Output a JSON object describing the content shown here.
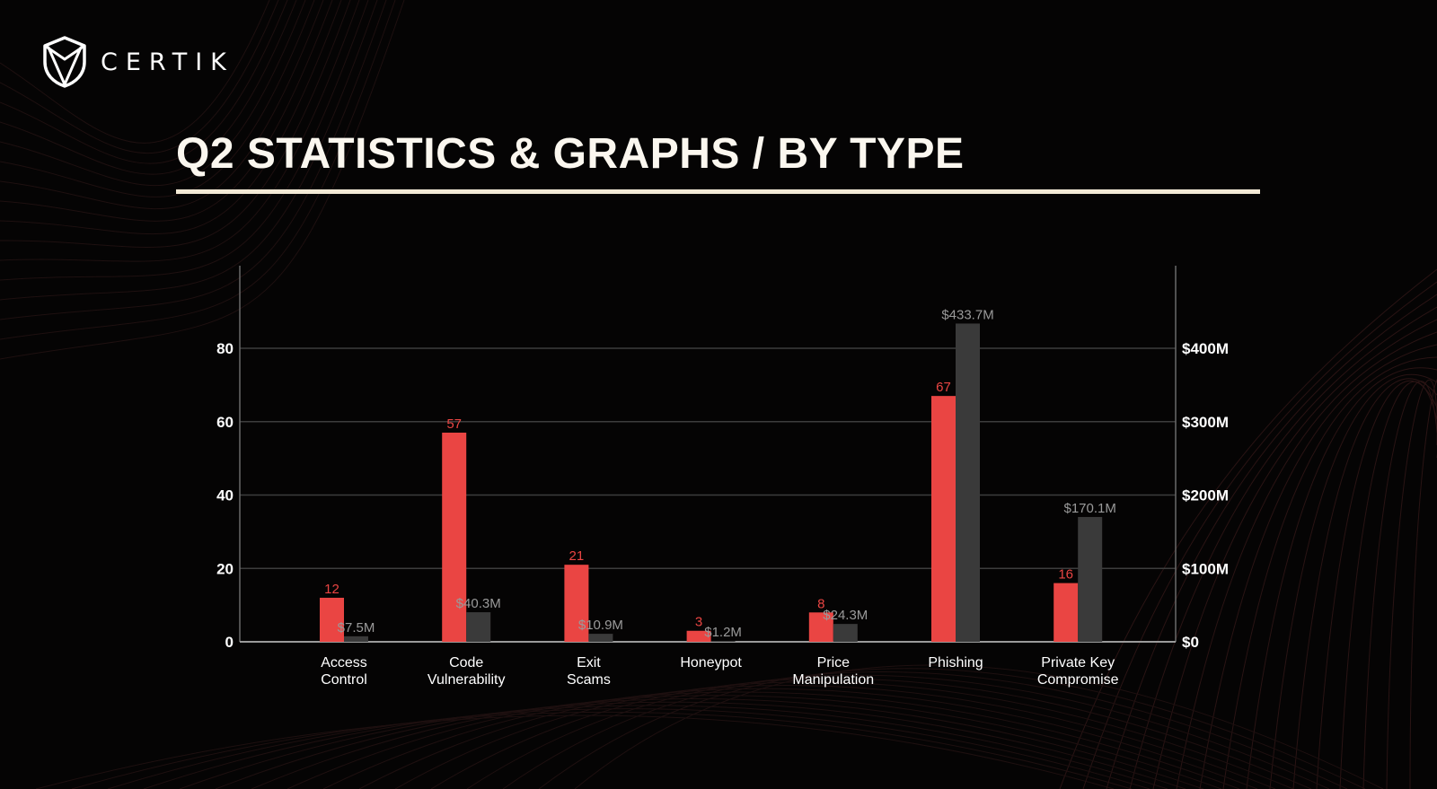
{
  "brand": {
    "name": "CERTIK"
  },
  "page": {
    "title": "Q2 STATISTICS & GRAPHS / BY TYPE"
  },
  "colors": {
    "background": "#050404",
    "count_bar": "#ea4543",
    "loss_bar": "#3a3a3a",
    "gridline": "#3d3d3d",
    "accent_rule": "#f3ead6"
  },
  "chart_data": {
    "type": "bar",
    "title": "",
    "categories": [
      [
        "Access",
        "Control"
      ],
      [
        "Code",
        "Vulnerability"
      ],
      [
        "Exit",
        "Scams"
      ],
      [
        "Honeypot"
      ],
      [
        "Price",
        "Manipulation"
      ],
      [
        "Phishing"
      ],
      [
        "Private Key",
        "Compromise"
      ]
    ],
    "series": [
      {
        "key": "count",
        "axis": "left",
        "color": "#ea4543",
        "values": [
          12,
          57,
          21,
          3,
          8,
          67,
          16
        ],
        "labels": [
          "12",
          "57",
          "21",
          "3",
          "8",
          "67",
          "16"
        ]
      },
      {
        "key": "loss",
        "axis": "right",
        "color": "#3a3a3a",
        "values": [
          7.5,
          40.3,
          10.9,
          1.2,
          24.3,
          433.7,
          170.1
        ],
        "labels": [
          "$7.5M",
          "$40.3M",
          "$10.9M",
          "$1.2M",
          "$24.3M",
          "$433.7M",
          "$170.1M"
        ]
      }
    ],
    "y_left": {
      "ylim": [
        0,
        100
      ],
      "ticks": [
        0,
        20,
        40,
        60,
        80
      ],
      "tick_labels": [
        "0",
        "20",
        "40",
        "60",
        "80"
      ]
    },
    "y_right": {
      "ylim": [
        0,
        500
      ],
      "ticks": [
        0,
        100,
        200,
        300,
        400
      ],
      "tick_labels": [
        "$0",
        "$100M",
        "$200M",
        "$300M",
        "$400M"
      ]
    },
    "grid": true,
    "legend": "none"
  }
}
